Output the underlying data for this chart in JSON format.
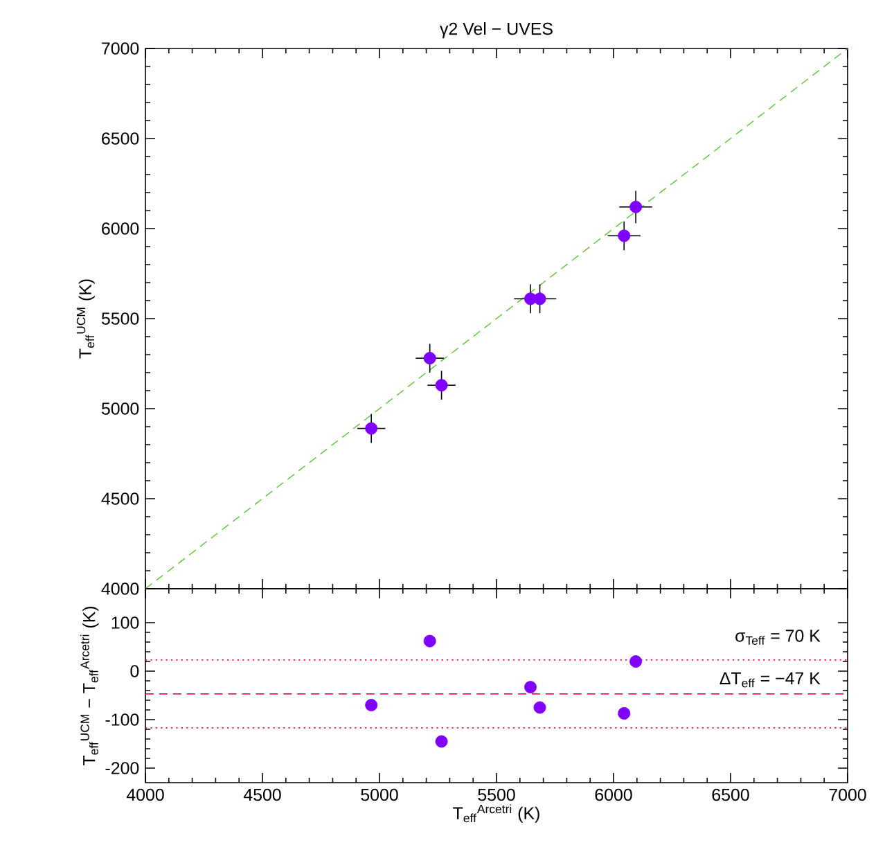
{
  "chart_data": [
    {
      "type": "scatter",
      "title": "γ2 Vel − UVES",
      "ylabel": "T$_{eff}$$^{UCM}$ (K)",
      "x": [
        4965,
        5215,
        5265,
        5645,
        5685,
        6045,
        6095
      ],
      "series": [
        {
          "color": "#8000ff",
          "marker": "circle",
          "values": [
            4890,
            5280,
            5130,
            5610,
            5610,
            5960,
            6120
          ],
          "errors": [
            80,
            80,
            80,
            80,
            80,
            80,
            90
          ],
          "xerrors": [
            60,
            60,
            60,
            [
              5575,
              5645
            ],
            [
              5685,
              5755
            ],
            70,
            70
          ]
        },
        {
          "type": "line",
          "color": "#66cc44",
          "line_style": "dashed",
          "marker": "none",
          "x": [
            4000,
            7000
          ],
          "values": [
            4000,
            7000
          ]
        }
      ],
      "xlim": [
        4000,
        7000
      ],
      "ylim": [
        4000,
        7000
      ],
      "xticks": [
        4000,
        4500,
        5000,
        5500,
        6000,
        6500,
        7000
      ],
      "yticks": [
        4000,
        4500,
        5000,
        5500,
        6000,
        6500,
        7000
      ],
      "tick_labels": "y",
      "grid": false
    },
    {
      "type": "scatter",
      "xlabel": "T$_{eff}$$^{Arcetri}$ (K)",
      "ylabel": "T$_{eff}$$^{UCM}$ − T$_{eff}$$^{Arcetri}$ (K)",
      "x": [
        4965,
        5215,
        5265,
        5645,
        5685,
        6045,
        6095
      ],
      "series": [
        {
          "color": "#8000ff",
          "marker": "circle",
          "values": [
            -70,
            62,
            -145,
            -33,
            -75,
            -87,
            20
          ]
        }
      ],
      "xlim": [
        4000,
        7000
      ],
      "ylim": [
        -230,
        170
      ],
      "xticks": [
        4000,
        4500,
        5000,
        5500,
        6000,
        6500,
        7000
      ],
      "yticks": [
        -200,
        -100,
        0,
        100
      ],
      "ref_lines": [
        {
          "axis": "y",
          "value": -47,
          "color": "#e8175d",
          "line_style": "dashed"
        },
        {
          "axis": "y",
          "value": 23,
          "color": "#e8175d",
          "line_style": "dotted"
        },
        {
          "axis": "y",
          "value": -117,
          "color": "#e8175d",
          "line_style": "dotted"
        }
      ],
      "annotations": [
        "σ$_{Teff}$ = 70 K",
        "ΔT$_{eff}$ = −47 K"
      ],
      "grid": false
    }
  ]
}
